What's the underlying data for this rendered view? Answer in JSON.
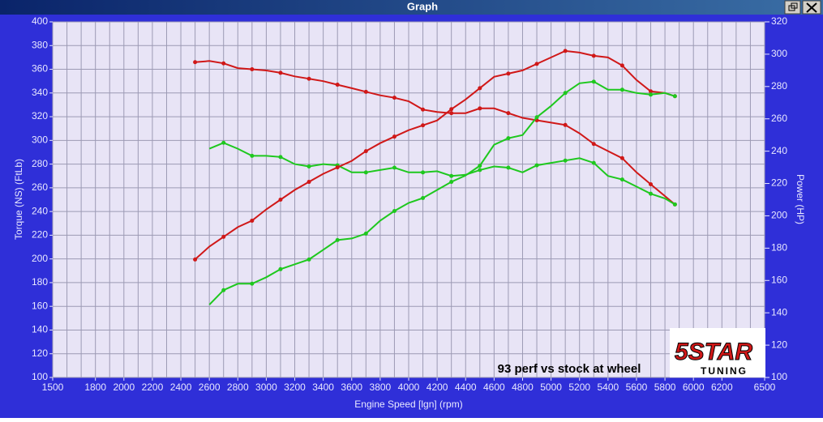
{
  "window_title": "Graph",
  "chart_data": {
    "type": "line",
    "xlabel": "Engine Speed [lgn] (rpm)",
    "ylabel": "Torque (NS) (FtLb)",
    "y2label": "Power (HP)",
    "annotation": "93 perf vs stock at wheel",
    "logo": {
      "brand": "5STAR",
      "sub": "TUNING"
    },
    "xlim": [
      1500,
      6500
    ],
    "xticks": [
      1500,
      1800,
      2000,
      2200,
      2400,
      2600,
      2800,
      3000,
      3200,
      3400,
      3600,
      3800,
      4000,
      4200,
      4400,
      4600,
      4800,
      5000,
      5200,
      5400,
      5600,
      5800,
      6000,
      6200,
      6500
    ],
    "x_minor_ticks": [
      1600,
      1700,
      1900,
      2100,
      2300,
      2500,
      2700,
      2900,
      3100,
      3300,
      3500,
      3700,
      3900,
      4100,
      4300,
      4500,
      4700,
      4900,
      5100,
      5300,
      5500,
      5700,
      5900,
      6100,
      6300,
      6400
    ],
    "ylim": [
      100,
      400
    ],
    "yticks": [
      100,
      120,
      140,
      160,
      180,
      200,
      220,
      240,
      260,
      280,
      300,
      320,
      340,
      360,
      380,
      400
    ],
    "y2lim": [
      100,
      320
    ],
    "y2ticks": [
      100,
      120,
      140,
      160,
      180,
      200,
      220,
      240,
      260,
      280,
      300,
      320
    ],
    "grid": true,
    "x": [
      2500,
      2600,
      2700,
      2800,
      2900,
      3000,
      3100,
      3200,
      3300,
      3400,
      3500,
      3600,
      3700,
      3800,
      3900,
      4000,
      4100,
      4200,
      4300,
      4400,
      4500,
      4600,
      4700,
      4800,
      4900,
      5000,
      5100,
      5200,
      5300,
      5400,
      5500,
      5600,
      5700,
      5800,
      5870
    ],
    "series": [
      {
        "color": "#d01818",
        "values": [
          366,
          367,
          365,
          361,
          360,
          359,
          357,
          354,
          352,
          350,
          347,
          344,
          341,
          338,
          336,
          333,
          326,
          324,
          323,
          323,
          327,
          327,
          323,
          319,
          317,
          315,
          313,
          306,
          297,
          291,
          285,
          273,
          263,
          253,
          246
        ]
      },
      {
        "color": "#1ec81e",
        "values": [
          null,
          293,
          298,
          293,
          287,
          287,
          286,
          280,
          278,
          280,
          279,
          273,
          273,
          275,
          277,
          273,
          273,
          274,
          270,
          271,
          275,
          278,
          277,
          273,
          279,
          281,
          283,
          285,
          281,
          270,
          267,
          261,
          255,
          251,
          246
        ]
      },
      {
        "color": "#d01818",
        "axis": "y2",
        "values": [
          173,
          181,
          187,
          193,
          197,
          204,
          210,
          216,
          221,
          226,
          230,
          234,
          240,
          245,
          249,
          253,
          256,
          259,
          266,
          272,
          279,
          286,
          288,
          290,
          294,
          298,
          302,
          301,
          299,
          298,
          293,
          284,
          277,
          276,
          274
        ]
      },
      {
        "color": "#1ec81e",
        "axis": "y2",
        "values": [
          null,
          145,
          154,
          158,
          158,
          162,
          167,
          170,
          173,
          179,
          185,
          186,
          189,
          197,
          203,
          208,
          211,
          216,
          221,
          225,
          231,
          244,
          248,
          250,
          261,
          268,
          276,
          282,
          283,
          278,
          278,
          276,
          275,
          276,
          274
        ]
      }
    ]
  }
}
